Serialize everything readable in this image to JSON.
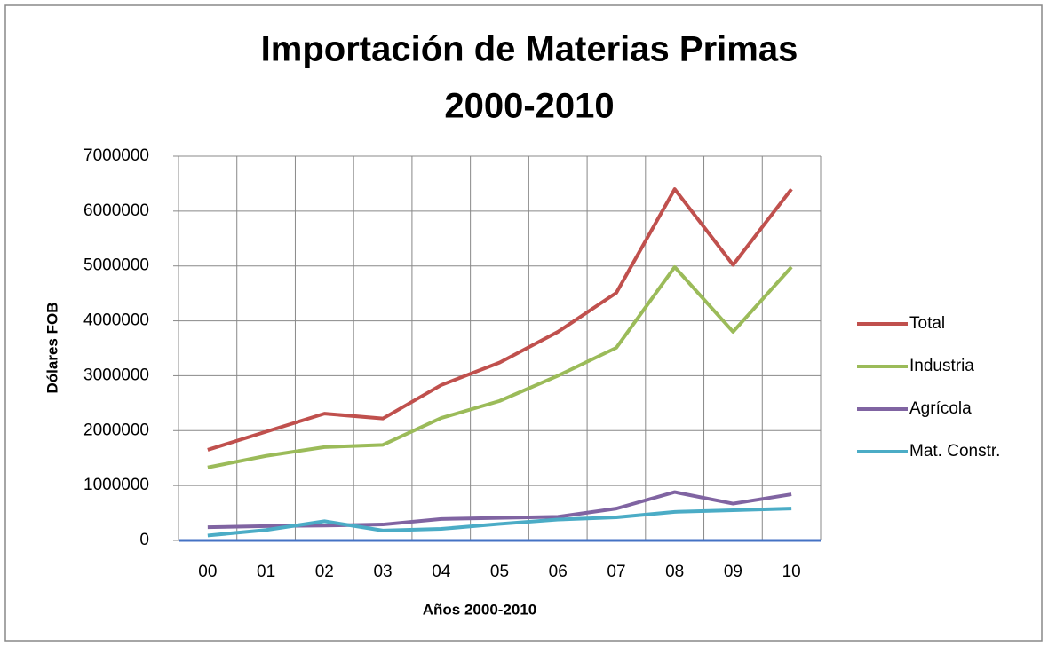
{
  "chart_data": {
    "type": "line",
    "title": [
      "Importación de Materias Primas",
      "2000-2010"
    ],
    "x_label": "Años 2000-2010",
    "y_label": "Dólares  FOB",
    "categories": [
      "00",
      "01",
      "02",
      "03",
      "04",
      "05",
      "06",
      "07",
      "08",
      "09",
      "10"
    ],
    "series": [
      {
        "name": "Total",
        "color": "#c0504d",
        "values": [
          1650000,
          1980000,
          2310000,
          2220000,
          2830000,
          3240000,
          3800000,
          4510000,
          6400000,
          5020000,
          6400000
        ]
      },
      {
        "name": "Industria",
        "color": "#9bbb59",
        "values": [
          1330000,
          1540000,
          1700000,
          1740000,
          2230000,
          2540000,
          3000000,
          3510000,
          4980000,
          3800000,
          4980000
        ]
      },
      {
        "name": "Agrícola",
        "color": "#8064a2",
        "values": [
          240000,
          260000,
          270000,
          290000,
          390000,
          410000,
          430000,
          580000,
          880000,
          670000,
          840000
        ]
      },
      {
        "name": "Mat. Constr.",
        "color": "#4bacc6",
        "values": [
          90000,
          190000,
          350000,
          180000,
          210000,
          300000,
          380000,
          420000,
          520000,
          550000,
          580000
        ]
      }
    ],
    "ylim": [
      0,
      7000000
    ],
    "yticks": [
      0,
      1000000,
      2000000,
      3000000,
      4000000,
      5000000,
      6000000,
      7000000
    ],
    "grid": true,
    "legend": "right"
  }
}
